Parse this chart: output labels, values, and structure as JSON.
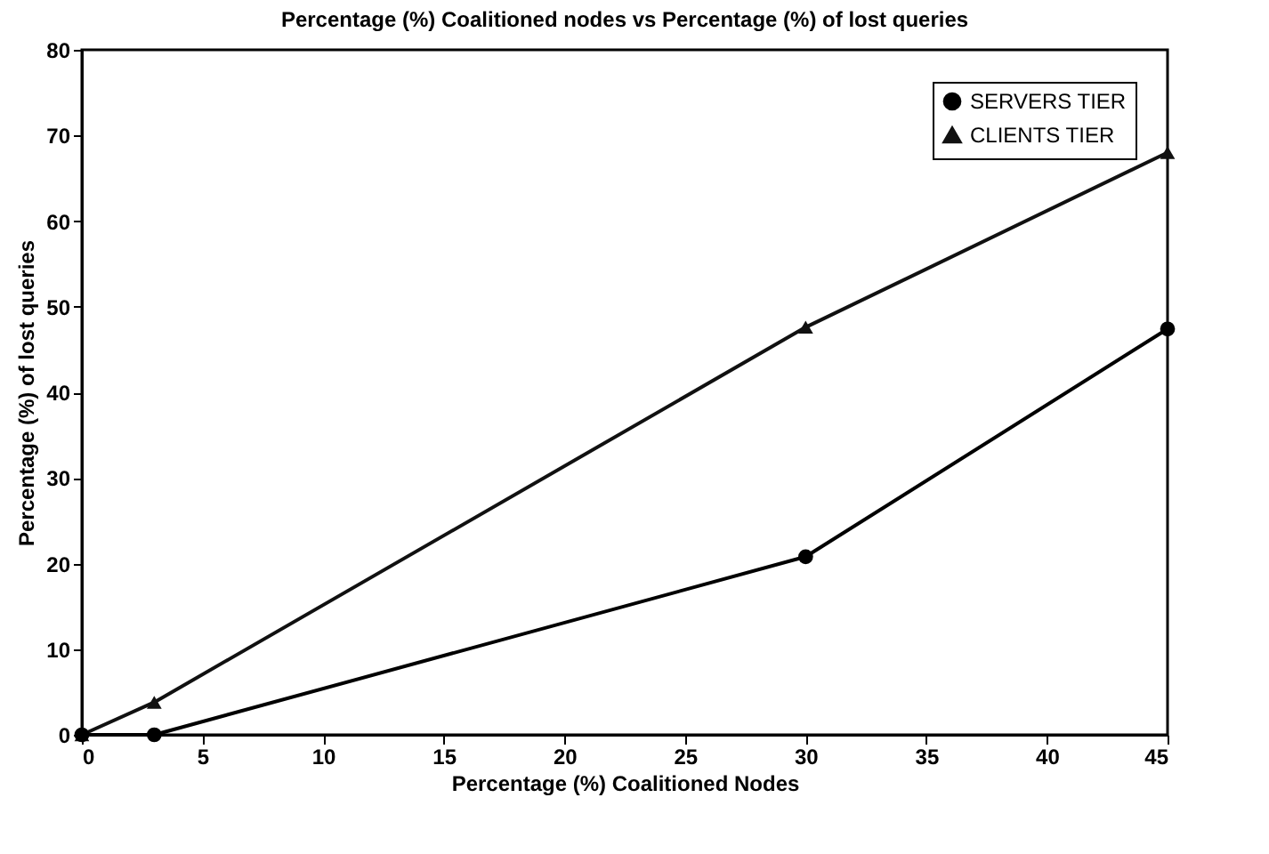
{
  "chart_data": {
    "type": "line",
    "title": "Percentage (%) Coalitioned nodes vs Percentage (%) of lost queries",
    "xlabel": "Percentage (%) Coalitioned Nodes",
    "ylabel": "Percentage (%) of lost queries",
    "x": [
      0,
      3,
      30,
      45
    ],
    "series": [
      {
        "name": "SERVERS TIER",
        "color": "#000000",
        "marker": "circle",
        "values": [
          0,
          0,
          20.8,
          47.4
        ]
      },
      {
        "name": "CLIENTS TIER",
        "color": "#111111",
        "marker": "triangle",
        "values": [
          0,
          3.8,
          47.6,
          68
        ]
      }
    ],
    "xlim": [
      0,
      45
    ],
    "xticks": [
      0,
      5,
      10,
      15,
      20,
      25,
      30,
      35,
      40,
      45
    ],
    "ylim": [
      0,
      80
    ],
    "yticks": [
      0,
      10,
      20,
      30,
      40,
      50,
      60,
      70,
      80
    ],
    "grid": false,
    "legend": "top right",
    "line_style": "solid"
  }
}
